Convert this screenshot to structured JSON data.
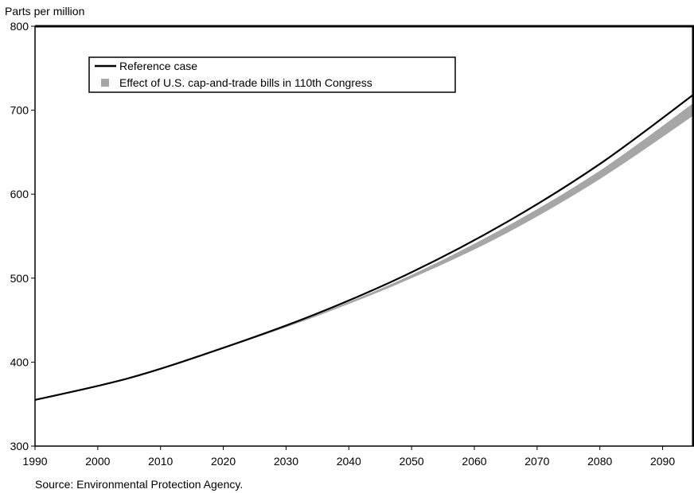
{
  "chart_data": {
    "type": "line",
    "title": "",
    "xlabel": "",
    "ylabel": "Parts per million",
    "xlim": [
      1990,
      2095
    ],
    "ylim": [
      300,
      800
    ],
    "x_ticks": [
      1990,
      2000,
      2010,
      2020,
      2030,
      2040,
      2050,
      2060,
      2070,
      2080,
      2090
    ],
    "y_ticks": [
      300,
      400,
      500,
      600,
      700,
      800
    ],
    "grid": false,
    "legend_position": "top-left",
    "series": [
      {
        "name": "Reference case",
        "style": "line",
        "color": "#000000",
        "x": [
          1990,
          2005,
          2020,
          2035,
          2050,
          2065,
          2080,
          2095
        ],
        "y": [
          355,
          381,
          417,
          458,
          507,
          566,
          636,
          719
        ]
      },
      {
        "name": "Effect of U.S. cap-and-trade bills in 110th Congress",
        "style": "band",
        "color": "#a6a6a6",
        "x": [
          1990,
          2005,
          2020,
          2035,
          2050,
          2065,
          2080,
          2095
        ],
        "upper": [
          355,
          381,
          417,
          457,
          504,
          561,
          628,
          709
        ],
        "lower": [
          355,
          381,
          416,
          455,
          500,
          553,
          618,
          694
        ]
      }
    ]
  },
  "source_note": "Source: Environmental Protection Agency."
}
